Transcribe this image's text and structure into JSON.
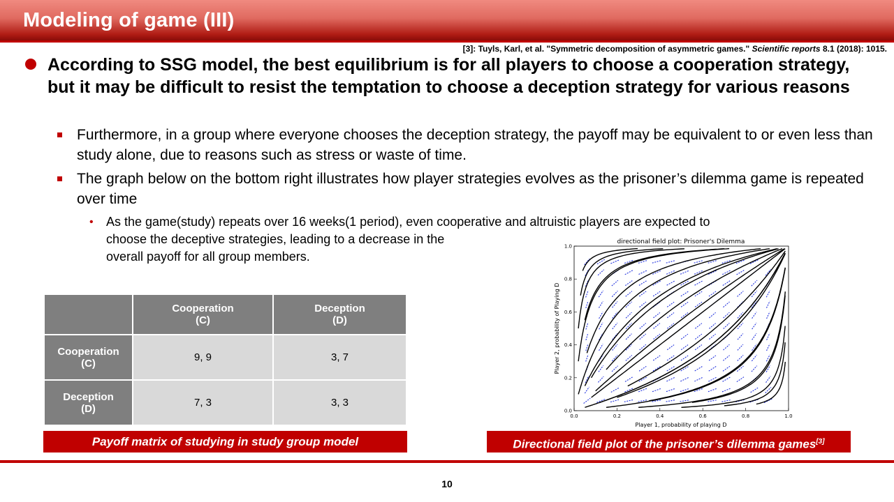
{
  "slide": {
    "title": "Modeling of game (III)",
    "reference": {
      "prefix": "[3]: Tuyls, Karl, et al. \"Symmetric decomposition of asymmetric games.\"",
      "journal": "Scientific reports",
      "suffix": "8.1 (2018): 1015."
    },
    "page_number": "10"
  },
  "bullets": {
    "main": "According to SSG model, the best equilibrium is for all players to choose a cooperation strategy, but it may be difficult to resist the temptation to choose a deception strategy for various reasons",
    "sub1": "Furthermore, in a group where everyone chooses the deception strategy, the payoff may be equivalent to or even less than study alone, due to reasons such as stress or waste of time.",
    "sub2": "The graph below on the bottom right illustrates how player strategies evolves as the game is repeated over time",
    "sub2_full": "The graph below on the bottom right illustrates how player strategies evolves as the prisoner’s dilemma game is repeated over time",
    "sub3_line1": "As the game(study)  repeats over 16 weeks(1 period), even cooperative and altruistic players are expected to",
    "sub3_line2": "choose the deceptive strategies, leading to a decrease in the",
    "sub3_line3": "overall payoff for all group members."
  },
  "payoff_table": {
    "col_headers": [
      {
        "line1": "Cooperation",
        "line2": "(C)"
      },
      {
        "line1": "Deception",
        "line2": "(D)"
      }
    ],
    "rows": [
      {
        "line1": "Cooperation",
        "line2": "(C)",
        "cells": [
          "9, 9",
          "3, 7"
        ]
      },
      {
        "line1": "Deception",
        "line2": "(D)",
        "cells": [
          "7, 3",
          "3, 3"
        ]
      }
    ],
    "caption": "Payoff matrix of studying in study group model"
  },
  "figure": {
    "caption": "Directional field plot of the prisoner’s dilemma games",
    "caption_ref": "[3]"
  },
  "chart_data": {
    "type": "directional field",
    "title": "directional field plot: Prisoner's Dilemma",
    "xlabel": "Player 1, probability of playing D",
    "ylabel": "Player 2, probability of Playing D",
    "xlim": [
      0.0,
      1.0
    ],
    "ylim": [
      0.0,
      1.0
    ],
    "xticks": [
      "0.0",
      "0.2",
      "0.4",
      "0.6",
      "0.8",
      "1.0"
    ],
    "yticks": [
      "0.0",
      "0.2",
      "0.4",
      "0.6",
      "0.8",
      "1.0"
    ],
    "colors": {
      "arrows": "#2233dd",
      "trajectories": "#000000"
    }
  },
  "colors": {
    "accent": "#c00000",
    "table_header": "#7f7f7f",
    "table_cell": "#d9d9d9"
  }
}
